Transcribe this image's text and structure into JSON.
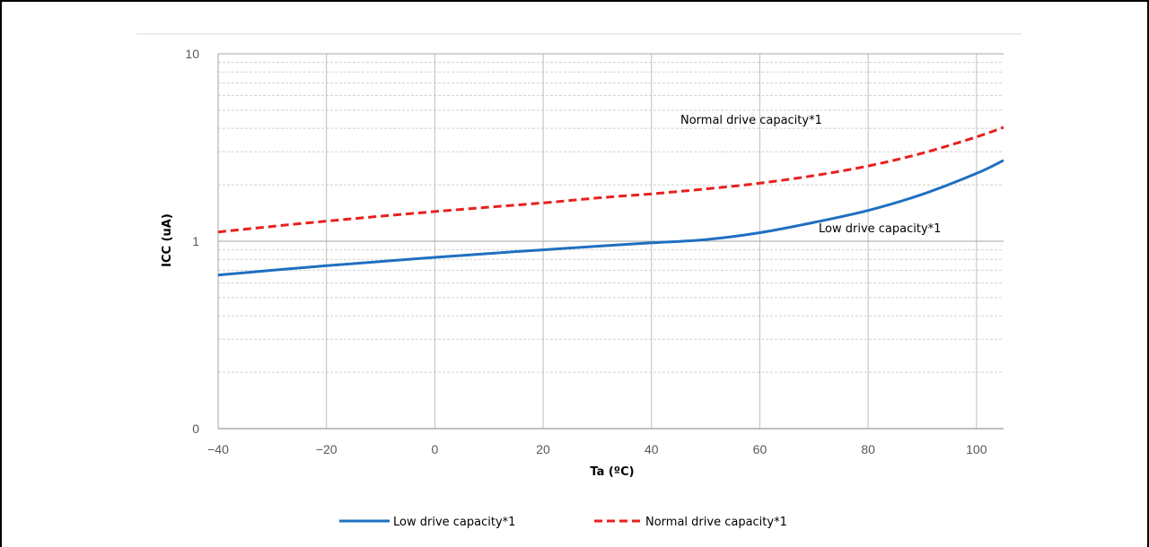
{
  "chart_data": {
    "type": "line",
    "xlabel": "Ta (ºC)",
    "ylabel": "ICC (uA)",
    "xlim": [
      -40,
      105
    ],
    "ylim_log": [
      0.1,
      10
    ],
    "y_scale": "log",
    "grid": "major and minor (dashed minor)",
    "x_ticks": [
      "−40",
      "−20",
      "0",
      "20",
      "40",
      "60",
      "80",
      "100"
    ],
    "x_tick_values": [
      -40,
      -20,
      0,
      20,
      40,
      60,
      80,
      100
    ],
    "y_ticks": [
      "0",
      "1",
      "10"
    ],
    "y_tick_values": [
      0.1,
      1,
      10
    ],
    "legend_position": "bottom",
    "series": [
      {
        "name": "Low drive capacity*1",
        "color": "#1f6fc1",
        "dash": "solid",
        "x": [
          -40,
          -30,
          -20,
          -10,
          0,
          10,
          20,
          30,
          40,
          50,
          60,
          70,
          80,
          90,
          100,
          105
        ],
        "y": [
          0.66,
          0.7,
          0.74,
          0.78,
          0.82,
          0.86,
          0.9,
          0.94,
          0.98,
          1.02,
          1.11,
          1.26,
          1.46,
          1.78,
          2.3,
          2.7
        ]
      },
      {
        "name": "Normal drive capacity*1",
        "color": "#e8201e",
        "dash": "dashed",
        "x": [
          -40,
          -30,
          -20,
          -10,
          0,
          10,
          20,
          30,
          40,
          50,
          60,
          70,
          80,
          90,
          100,
          105
        ],
        "y": [
          1.12,
          1.2,
          1.28,
          1.36,
          1.44,
          1.52,
          1.6,
          1.7,
          1.79,
          1.9,
          2.04,
          2.24,
          2.52,
          2.95,
          3.6,
          4.05
        ]
      }
    ],
    "annotations": [
      {
        "text": "Normal drive capacity*1",
        "series": 1
      },
      {
        "text": "Low drive capacity*1",
        "series": 0
      }
    ]
  }
}
